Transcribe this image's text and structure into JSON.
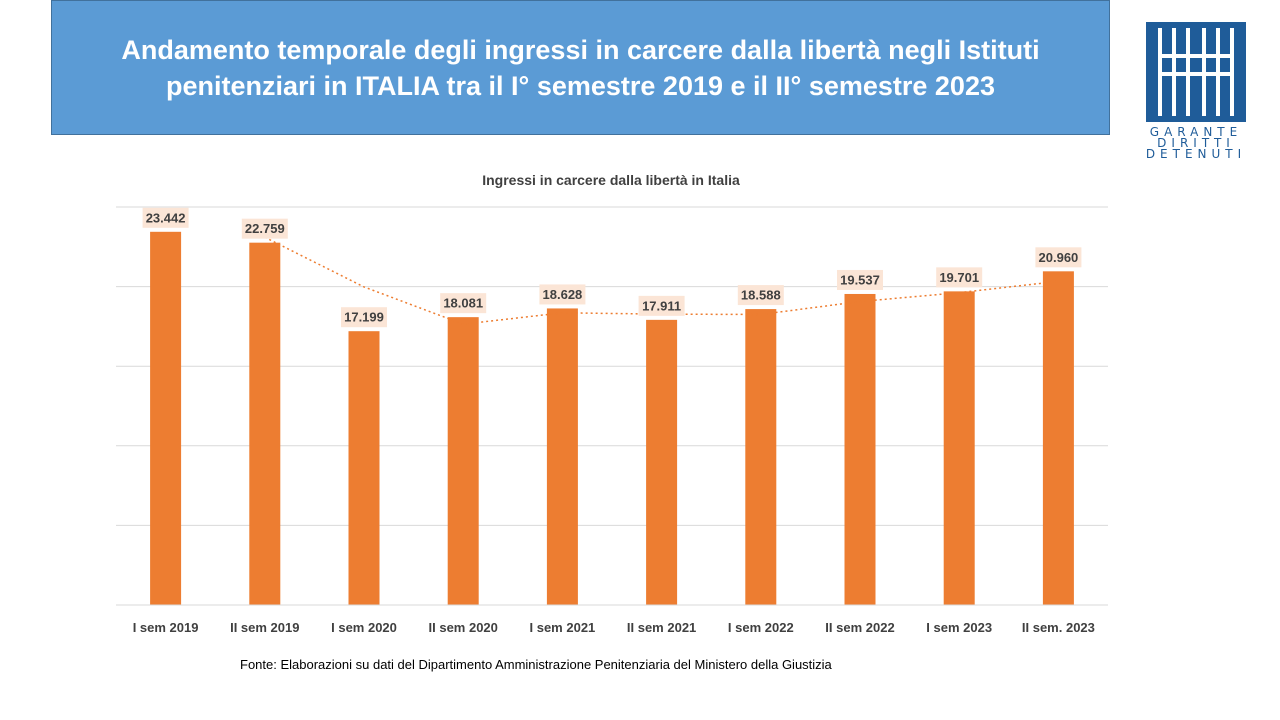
{
  "slide": {
    "title": "Andamento temporale degli ingressi in carcere dalla libertà negli Istituti penitenziari in ITALIA tra il I° semestre 2019 e il II° semestre 2023",
    "source": "Fonte:  Elaborazioni su dati del Dipartimento  Amministrazione Penitenziaria del Ministero della Giustizia"
  },
  "logo": {
    "icon": "bars-grid-logo-icon",
    "lines": [
      "GARANTE",
      "DIRITTI",
      "DETENUTI"
    ]
  },
  "colors": {
    "header_bg": "#5b9bd5",
    "bar": "#ed7d31",
    "label_bg": "#fbe5d6",
    "trendline": "#ed7d31",
    "logo_blue": "#1f5c99"
  },
  "chart_data": {
    "type": "bar",
    "title": "Ingressi in carcere dalla libertà in Italia",
    "categories": [
      "I sem 2019",
      "II sem 2019",
      "I sem 2020",
      "II sem 2020",
      "I sem 2021",
      "II sem 2021",
      "I sem 2022",
      "II sem 2022",
      "I sem 2023",
      "II sem. 2023"
    ],
    "values": [
      23442,
      22759,
      17199,
      18081,
      18628,
      17911,
      18588,
      19537,
      19701,
      20960
    ],
    "value_labels": [
      "23.442",
      "22.759",
      "17.199",
      "18.081",
      "18.628",
      "17.911",
      "18.588",
      "19.537",
      "19.701",
      "20.960"
    ],
    "ylim": [
      0,
      25000
    ],
    "y_gridline_step": 5000,
    "y_tick_labels_shown": false,
    "grid": true,
    "legend": "none",
    "trendline": {
      "type": "moving-average",
      "period": 2,
      "style": "dotted"
    }
  }
}
